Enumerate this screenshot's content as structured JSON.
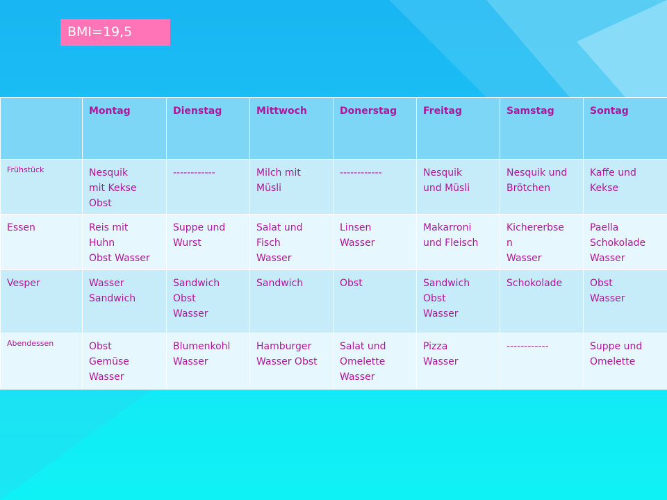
{
  "badge": {
    "text": "BMI=19,5"
  },
  "table": {
    "headers": [
      "",
      "Montag",
      "Dienstag",
      "Mittwoch",
      "Donerstag",
      "Freitag",
      "Samstag",
      "Sontag"
    ],
    "rows": [
      {
        "label": "Frühstück",
        "cells": [
          [
            "Nesquik",
            "mit Kekse",
            "Obst"
          ],
          [
            "------------"
          ],
          [
            "Milch mit",
            "Müsli"
          ],
          [
            "------------"
          ],
          [
            "Nesquik",
            "und Müsli"
          ],
          [
            "Nesquik und",
            "Brötchen"
          ],
          [
            "Kaffe und",
            "Kekse"
          ]
        ]
      },
      {
        "label": "Essen",
        "cells": [
          [
            "Reis mit",
            "Huhn",
            "Obst Wasser"
          ],
          [
            "Suppe und",
            "Wurst"
          ],
          [
            "Salat und",
            "Fisch",
            "Wasser"
          ],
          [
            "Linsen",
            "Wasser"
          ],
          [
            "Makarroni",
            "und Fleisch"
          ],
          [
            "Kichererbse",
            "n",
            "Wasser"
          ],
          [
            "Paella",
            "Schokolade",
            "Wasser"
          ]
        ]
      },
      {
        "label": "Vesper",
        "cells": [
          [
            "Wasser",
            "Sandwich"
          ],
          [
            "Sandwich",
            "Obst",
            "Wasser"
          ],
          [
            "Sandwich"
          ],
          [
            "Obst"
          ],
          [
            "Sandwich",
            "Obst",
            "Wasser"
          ],
          [
            "Schokolade"
          ],
          [
            "Obst",
            "Wasser"
          ]
        ]
      },
      {
        "label": "Abendessen",
        "cells": [
          [
            "Obst",
            "Gemüse",
            "Wasser"
          ],
          [
            "Blumenkohl",
            "Wasser"
          ],
          [
            "Hamburger",
            "Wasser Obst"
          ],
          [
            "Salat und",
            "Omelette",
            "Wasser"
          ],
          [
            "Pizza",
            "Wasser"
          ],
          [
            "------------"
          ],
          [
            "Suppe und",
            "Omelette"
          ]
        ]
      }
    ]
  }
}
